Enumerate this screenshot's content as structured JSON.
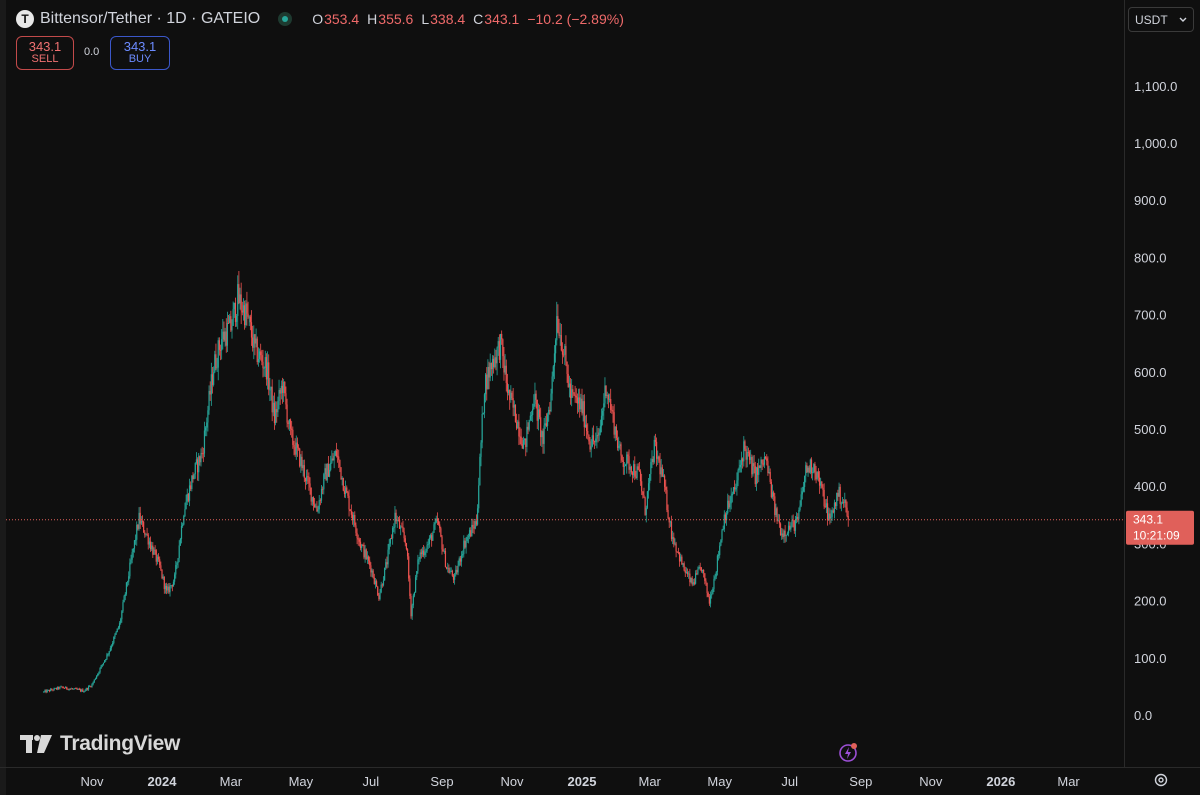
{
  "header": {
    "symbol_icon": "T",
    "title": "Bittensor/Tether · 1D · GATEIO",
    "ohlc": [
      {
        "key": "O",
        "value": "353.4"
      },
      {
        "key": "H",
        "value": "355.6"
      },
      {
        "key": "L",
        "value": "338.4"
      },
      {
        "key": "C",
        "value": "343.1"
      }
    ],
    "change": "−10.2 (−2.89%)"
  },
  "trade": {
    "sell_price": "343.1",
    "sell_label": "SELL",
    "spread": "0.0",
    "buy_price": "343.1",
    "buy_label": "BUY"
  },
  "currency": {
    "label": "USDT",
    "icon": "chevron-down-icon"
  },
  "watermark": "TradingView",
  "colors": {
    "background": "#0f0f0f",
    "up": "#26a69a",
    "down": "#ef5350",
    "last_price_tag": "#e0605a",
    "axis_text": "#d1d4dc"
  },
  "chart_data": {
    "type": "candlestick",
    "price_axis": {
      "ticks": [
        "0.0",
        "100.0",
        "200.0",
        "300.0",
        "400.0",
        "500.0",
        "600.0",
        "700.0",
        "800.0",
        "900.0",
        "1,000.0",
        "1,100.0"
      ],
      "tick_values": [
        0,
        100,
        200,
        300,
        400,
        500,
        600,
        700,
        800,
        900,
        1000,
        1100
      ],
      "ylim": [
        -30,
        1210
      ]
    },
    "time_axis": {
      "labels": [
        {
          "text": "Nov",
          "date": "2023-11-01",
          "bold": false
        },
        {
          "text": "2024",
          "date": "2024-01-01",
          "bold": true
        },
        {
          "text": "Mar",
          "date": "2024-03-01",
          "bold": false
        },
        {
          "text": "May",
          "date": "2024-05-01",
          "bold": false
        },
        {
          "text": "Jul",
          "date": "2024-07-01",
          "bold": false
        },
        {
          "text": "Sep",
          "date": "2024-09-01",
          "bold": false
        },
        {
          "text": "Nov",
          "date": "2024-11-01",
          "bold": false
        },
        {
          "text": "2025",
          "date": "2025-01-01",
          "bold": true
        },
        {
          "text": "Mar",
          "date": "2025-03-01",
          "bold": false
        },
        {
          "text": "May",
          "date": "2025-05-01",
          "bold": false
        },
        {
          "text": "Jul",
          "date": "2025-07-01",
          "bold": false
        },
        {
          "text": "Sep",
          "date": "2025-09-01",
          "bold": false
        },
        {
          "text": "Nov",
          "date": "2025-11-01",
          "bold": false
        },
        {
          "text": "2026",
          "date": "2026-01-01",
          "bold": true
        },
        {
          "text": "Mar",
          "date": "2026-03-01",
          "bold": false
        }
      ]
    },
    "last_price": {
      "value": 343.1,
      "label": "343.1",
      "countdown": "10:21:09"
    },
    "series": [
      {
        "path": [
          [
            "2023-09-20",
            42
          ],
          [
            "2023-10-05",
            50
          ],
          [
            "2023-10-25",
            44
          ],
          [
            "2023-11-01",
            55
          ],
          [
            "2023-11-15",
            110
          ],
          [
            "2023-11-25",
            160
          ],
          [
            "2023-12-05",
            270
          ],
          [
            "2023-12-12",
            345
          ],
          [
            "2023-12-20",
            310
          ],
          [
            "2023-12-30",
            260
          ],
          [
            "2024-01-05",
            215
          ],
          [
            "2024-01-12",
            240
          ],
          [
            "2024-01-20",
            360
          ],
          [
            "2024-01-28",
            420
          ],
          [
            "2024-02-05",
            460
          ],
          [
            "2024-02-15",
            610
          ],
          [
            "2024-02-22",
            660
          ],
          [
            "2024-03-01",
            680
          ],
          [
            "2024-03-07",
            730
          ],
          [
            "2024-03-15",
            700
          ],
          [
            "2024-03-22",
            640
          ],
          [
            "2024-04-01",
            610
          ],
          [
            "2024-04-08",
            520
          ],
          [
            "2024-04-15",
            580
          ],
          [
            "2024-04-22",
            490
          ],
          [
            "2024-04-30",
            450
          ],
          [
            "2024-05-08",
            400
          ],
          [
            "2024-05-15",
            360
          ],
          [
            "2024-05-22",
            420
          ],
          [
            "2024-06-01",
            460
          ],
          [
            "2024-06-08",
            400
          ],
          [
            "2024-06-15",
            350
          ],
          [
            "2024-06-22",
            300
          ],
          [
            "2024-07-01",
            260
          ],
          [
            "2024-07-08",
            210
          ],
          [
            "2024-07-15",
            270
          ],
          [
            "2024-07-22",
            350
          ],
          [
            "2024-08-01",
            300
          ],
          [
            "2024-08-05",
            180
          ],
          [
            "2024-08-12",
            280
          ],
          [
            "2024-08-20",
            300
          ],
          [
            "2024-08-28",
            340
          ],
          [
            "2024-09-05",
            260
          ],
          [
            "2024-09-12",
            240
          ],
          [
            "2024-09-20",
            300
          ],
          [
            "2024-10-01",
            340
          ],
          [
            "2024-10-08",
            580
          ],
          [
            "2024-10-15",
            620
          ],
          [
            "2024-10-22",
            650
          ],
          [
            "2024-10-29",
            560
          ],
          [
            "2024-11-05",
            520
          ],
          [
            "2024-11-12",
            470
          ],
          [
            "2024-11-20",
            560
          ],
          [
            "2024-11-28",
            480
          ],
          [
            "2024-12-05",
            560
          ],
          [
            "2024-12-10",
            700
          ],
          [
            "2024-12-15",
            650
          ],
          [
            "2024-12-22",
            560
          ],
          [
            "2025-01-01",
            540
          ],
          [
            "2025-01-08",
            480
          ],
          [
            "2025-01-15",
            480
          ],
          [
            "2025-01-22",
            580
          ],
          [
            "2025-01-28",
            520
          ],
          [
            "2025-02-04",
            450
          ],
          [
            "2025-02-12",
            440
          ],
          [
            "2025-02-20",
            420
          ],
          [
            "2025-02-25",
            360
          ],
          [
            "2025-03-05",
            470
          ],
          [
            "2025-03-12",
            420
          ],
          [
            "2025-03-20",
            320
          ],
          [
            "2025-03-30",
            260
          ],
          [
            "2025-04-07",
            230
          ],
          [
            "2025-04-15",
            260
          ],
          [
            "2025-04-22",
            200
          ],
          [
            "2025-04-28",
            260
          ],
          [
            "2025-05-05",
            350
          ],
          [
            "2025-05-15",
            400
          ],
          [
            "2025-05-22",
            470
          ],
          [
            "2025-06-01",
            420
          ],
          [
            "2025-06-10",
            450
          ],
          [
            "2025-06-18",
            360
          ],
          [
            "2025-06-24",
            320
          ],
          [
            "2025-07-01",
            330
          ],
          [
            "2025-07-08",
            340
          ],
          [
            "2025-07-15",
            430
          ],
          [
            "2025-07-22",
            440
          ],
          [
            "2025-07-28",
            400
          ],
          [
            "2025-08-05",
            340
          ],
          [
            "2025-08-12",
            390
          ],
          [
            "2025-08-18",
            370
          ],
          [
            "2025-08-21",
            343.1
          ]
        ]
      }
    ]
  }
}
